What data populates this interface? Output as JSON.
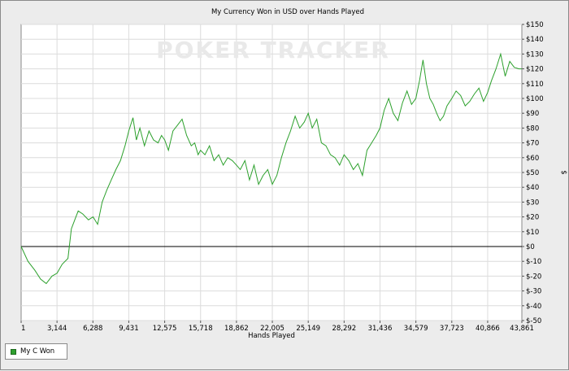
{
  "chart_data": {
    "type": "line",
    "title": "My Currency Won in USD over Hands Played",
    "xlabel": "Hands Played",
    "ylabel": "$",
    "watermark": "POKER TRACKER",
    "x_ticks": [
      1,
      3144,
      6288,
      9431,
      12575,
      15718,
      18862,
      22005,
      25149,
      28292,
      31436,
      34579,
      37723,
      40866,
      43861
    ],
    "x_tick_labels": [
      "1",
      "3,144",
      "6,288",
      "9,431",
      "12,575",
      "15,718",
      "18,862",
      "22,005",
      "25,149",
      "28,292",
      "31,436",
      "34,579",
      "37,723",
      "40,866",
      "43,861"
    ],
    "xlim": [
      1,
      43861
    ],
    "ylim": [
      -50,
      150
    ],
    "y_ticks": [
      -50,
      -40,
      -30,
      -20,
      -10,
      0,
      10,
      20,
      30,
      40,
      50,
      60,
      70,
      80,
      90,
      100,
      110,
      120,
      130,
      140,
      150
    ],
    "y_tick_labels": [
      "$-50",
      "$-40",
      "$-30",
      "$-20",
      "$-10",
      "$0",
      "$10",
      "$20",
      "$30",
      "$40",
      "$50",
      "$60",
      "$70",
      "$80",
      "$90",
      "$100",
      "$110",
      "$120",
      "$130",
      "$140",
      "$150"
    ],
    "grid": true,
    "legend_position": "bottom-left",
    "colors": {
      "line": "#2ca02c",
      "zero_line": "#000000",
      "grid": "#dcdcdc",
      "plot_bg": "#ffffff",
      "frame_bg": "#ececec"
    },
    "series": [
      {
        "name": "My C Won",
        "x": [
          1,
          600,
          1200,
          1700,
          2200,
          2700,
          3150,
          3600,
          4100,
          4400,
          4700,
          5000,
          5400,
          5900,
          6300,
          6700,
          7100,
          7500,
          7900,
          8300,
          8700,
          9100,
          9431,
          9800,
          10100,
          10400,
          10800,
          11200,
          11600,
          12000,
          12300,
          12575,
          12900,
          13300,
          13700,
          14100,
          14500,
          14900,
          15200,
          15500,
          15718,
          16100,
          16500,
          16900,
          17300,
          17700,
          18100,
          18500,
          18862,
          19200,
          19600,
          20000,
          20400,
          20800,
          21200,
          21600,
          22005,
          22400,
          22800,
          23200,
          23600,
          24000,
          24400,
          24800,
          25149,
          25500,
          25900,
          26300,
          26700,
          27100,
          27500,
          27900,
          28292,
          28700,
          29100,
          29500,
          29900,
          30300,
          30700,
          31100,
          31436,
          31800,
          32200,
          32600,
          33000,
          33400,
          33800,
          34200,
          34579,
          34900,
          35200,
          35500,
          35800,
          36100,
          36400,
          36700,
          37000,
          37300,
          37723,
          38100,
          38500,
          38900,
          39300,
          39700,
          40100,
          40500,
          40866,
          41200,
          41600,
          42000,
          42400,
          42800,
          43200,
          43600,
          43861
        ],
        "values": [
          0,
          -10,
          -16,
          -22,
          -25,
          -20,
          -18,
          -12,
          -8,
          12,
          18,
          24,
          22,
          18,
          20,
          15,
          30,
          38,
          45,
          52,
          58,
          68,
          78,
          87,
          72,
          80,
          68,
          78,
          72,
          70,
          75,
          72,
          65,
          78,
          82,
          86,
          75,
          68,
          70,
          62,
          65,
          62,
          68,
          58,
          62,
          55,
          60,
          58,
          55,
          52,
          58,
          45,
          55,
          42,
          48,
          52,
          42,
          48,
          60,
          70,
          78,
          88,
          80,
          84,
          90,
          80,
          86,
          70,
          68,
          62,
          60,
          55,
          62,
          58,
          52,
          56,
          48,
          65,
          70,
          75,
          80,
          92,
          100,
          90,
          85,
          97,
          105,
          96,
          100,
          112,
          126,
          110,
          100,
          96,
          90,
          85,
          88,
          95,
          100,
          105,
          102,
          95,
          98,
          103,
          107,
          98,
          104,
          112,
          120,
          130,
          115,
          125,
          121,
          120,
          120
        ]
      }
    ]
  },
  "legend": {
    "label": "My C Won"
  }
}
